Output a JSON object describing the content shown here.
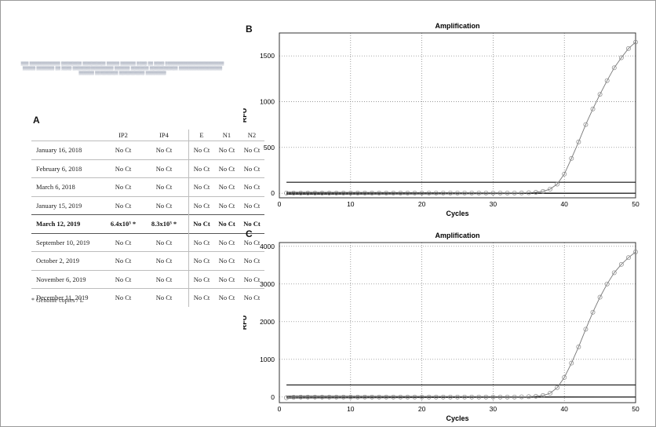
{
  "citation": "(bioRxiv preprint header text: not legible at this resolution)",
  "panel_A": {
    "label": "A",
    "headers": [
      "",
      "IP2",
      "IP4",
      "E",
      "N1",
      "N2"
    ],
    "rows": [
      [
        "January 16, 2018",
        "No Ct",
        "No Ct",
        "No Ct",
        "No Ct",
        "No Ct"
      ],
      [
        "February 6, 2018",
        "No Ct",
        "No Ct",
        "No Ct",
        "No Ct",
        "No Ct"
      ],
      [
        "March 6, 2018",
        "No Ct",
        "No Ct",
        "No Ct",
        "No Ct",
        "No Ct"
      ],
      [
        "January 15, 2019",
        "No Ct",
        "No Ct",
        "No Ct",
        "No Ct",
        "No Ct"
      ],
      [
        "March 12, 2019",
        "6.4x10³ *",
        "8.3x10³ *",
        "No Ct",
        "No Ct",
        "No Ct"
      ],
      [
        "September 10, 2019",
        "No Ct",
        "No Ct",
        "No Ct",
        "No Ct",
        "No Ct"
      ],
      [
        "October 2, 2019",
        "No Ct",
        "No Ct",
        "No Ct",
        "No Ct",
        "No Ct"
      ],
      [
        "November 6, 2019",
        "No Ct",
        "No Ct",
        "No Ct",
        "No Ct",
        "No Ct"
      ],
      [
        "December 11, 2019",
        "No Ct",
        "No Ct",
        "No Ct",
        "No Ct",
        "No Ct"
      ]
    ],
    "bold_row": 4,
    "footnote": "* Genome copies / L"
  },
  "chart_data": [
    {
      "panel": "B",
      "type": "line",
      "title": "Amplification",
      "xlabel": "Cycles",
      "ylabel": "RFU",
      "xlim": [
        0,
        50
      ],
      "ylim": [
        -50,
        1750
      ],
      "xticks": [
        0,
        10,
        20,
        30,
        40,
        50
      ],
      "yticks": [
        0,
        500,
        1000,
        1500
      ],
      "grid": true,
      "threshold": 120,
      "series": [
        {
          "x": [
            1,
            2,
            3,
            4,
            5,
            6,
            7,
            8,
            9,
            10,
            11,
            12,
            13,
            14,
            15,
            16,
            17,
            18,
            19,
            20,
            21,
            22,
            23,
            24,
            25,
            26,
            27,
            28,
            29,
            30,
            31,
            32,
            33,
            34,
            35,
            36,
            37,
            38,
            39,
            40,
            41,
            42,
            43,
            44,
            45,
            46,
            47,
            48,
            49,
            50
          ],
          "values": [
            2,
            2,
            2,
            2,
            2,
            2,
            2,
            2,
            2,
            2,
            2,
            2,
            2,
            2,
            2,
            2,
            2,
            2,
            2,
            2,
            2,
            2,
            2,
            2,
            2,
            2,
            2,
            2,
            2,
            2,
            2,
            2,
            2,
            3,
            5,
            10,
            20,
            45,
            100,
            210,
            380,
            560,
            750,
            920,
            1080,
            1230,
            1370,
            1480,
            1580,
            1650
          ]
        }
      ]
    },
    {
      "panel": "C",
      "type": "line",
      "title": "Amplification",
      "xlabel": "Cycles",
      "ylabel": "RFU",
      "xlim": [
        0,
        50
      ],
      "ylim": [
        -150,
        4100
      ],
      "xticks": [
        0,
        10,
        20,
        30,
        40,
        50
      ],
      "yticks": [
        0,
        1000,
        2000,
        3000,
        4000
      ],
      "grid": true,
      "threshold": 320,
      "series": [
        {
          "x": [
            1,
            2,
            3,
            4,
            5,
            6,
            7,
            8,
            9,
            10,
            11,
            12,
            13,
            14,
            15,
            16,
            17,
            18,
            19,
            20,
            21,
            22,
            23,
            24,
            25,
            26,
            27,
            28,
            29,
            30,
            31,
            32,
            33,
            34,
            35,
            36,
            37,
            38,
            39,
            40,
            41,
            42,
            43,
            44,
            45,
            46,
            47,
            48,
            49,
            50
          ],
          "values": [
            -20,
            -5,
            0,
            0,
            0,
            0,
            0,
            0,
            0,
            0,
            0,
            0,
            0,
            0,
            0,
            0,
            0,
            0,
            0,
            0,
            0,
            0,
            0,
            0,
            0,
            0,
            0,
            0,
            0,
            0,
            0,
            0,
            0,
            5,
            10,
            20,
            40,
            100,
            250,
            520,
            900,
            1330,
            1800,
            2250,
            2650,
            3000,
            3300,
            3520,
            3700,
            3850
          ]
        }
      ]
    }
  ]
}
